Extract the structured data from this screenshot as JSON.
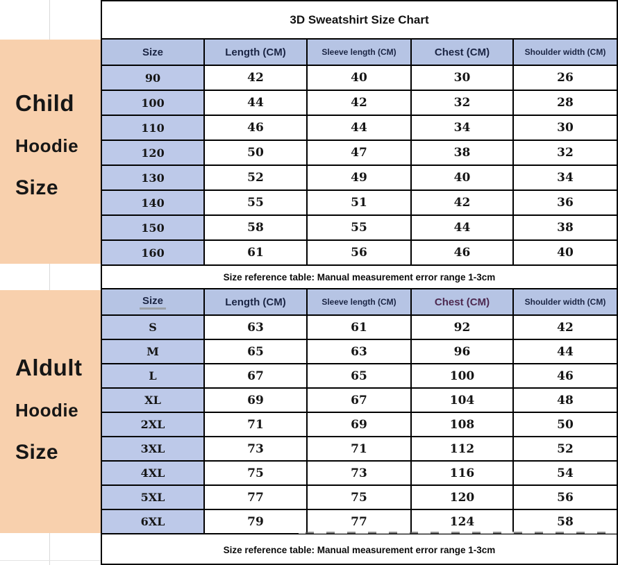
{
  "title": "3D Sweatshirt Size Chart",
  "colors": {
    "header_blue": "#b6c4e4",
    "label_blue": "#bdc9e9",
    "peach": "#f8d0ad",
    "header_text_navy": "#1b2544",
    "adult_chest_purple": "#4d2950",
    "border_black": "#000000"
  },
  "sidebar": {
    "child": {
      "line1": "Child",
      "line2": "Hoodie",
      "line3": "Size"
    },
    "adult": {
      "line1": "Aldult",
      "line2": "Hoodie",
      "line3": "Size"
    }
  },
  "chart_data": [
    {
      "type": "table",
      "section": "Child Hoodie Size",
      "columns": [
        "Size",
        "Length (CM)",
        "Sleeve length (CM)",
        "Chest (CM)",
        "Shoulder width (CM)"
      ],
      "rows": [
        [
          "90",
          "42",
          "40",
          "30",
          "26"
        ],
        [
          "100",
          "44",
          "42",
          "32",
          "28"
        ],
        [
          "110",
          "46",
          "44",
          "34",
          "30"
        ],
        [
          "120",
          "50",
          "47",
          "38",
          "32"
        ],
        [
          "130",
          "52",
          "49",
          "40",
          "34"
        ],
        [
          "140",
          "55",
          "51",
          "42",
          "36"
        ],
        [
          "150",
          "58",
          "55",
          "44",
          "38"
        ],
        [
          "160",
          "61",
          "56",
          "46",
          "40"
        ]
      ],
      "note": "Size reference table: Manual measurement error range 1-3cm"
    },
    {
      "type": "table",
      "section": "Aldult Hoodie Size",
      "columns": [
        "Size",
        "Length (CM)",
        "Sleeve length (CM)",
        "Chest (CM)",
        "Shoulder width (CM)"
      ],
      "header_accents": {
        "size_underline": true,
        "chest_color": "#4d2950"
      },
      "rows": [
        [
          "S",
          "63",
          "61",
          "92",
          "42"
        ],
        [
          "M",
          "65",
          "63",
          "96",
          "44"
        ],
        [
          "L",
          "67",
          "65",
          "100",
          "46"
        ],
        [
          "XL",
          "69",
          "67",
          "104",
          "48"
        ],
        [
          "2XL",
          "71",
          "69",
          "108",
          "50"
        ],
        [
          "3XL",
          "73",
          "71",
          "112",
          "52"
        ],
        [
          "4XL",
          "75",
          "73",
          "116",
          "54"
        ],
        [
          "5XL",
          "77",
          "75",
          "120",
          "56"
        ],
        [
          "6XL",
          "79",
          "77",
          "124",
          "58"
        ]
      ],
      "note": "Size reference table: Manual measurement error range 1-3cm"
    }
  ]
}
